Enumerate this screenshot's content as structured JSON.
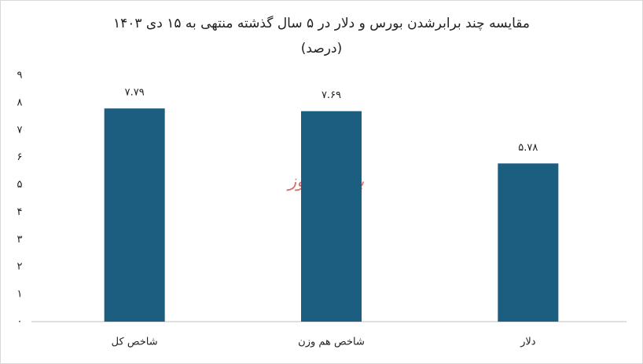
{
  "chart_data": {
    "type": "bar",
    "title": "مقایسه چند برابرشدن بورس و دلار در ۵ سال گذشته منتهی به ۱۵ دی ۱۴۰۳",
    "subtitle": "(درصد)",
    "watermark": "بورس نیوز",
    "categories": [
      "شاخص کل",
      "شاخص هم وزن",
      "دلار"
    ],
    "values": [
      7.79,
      7.69,
      5.78
    ],
    "value_labels": [
      "۷.۷۹",
      "۷.۶۹",
      "۵.۷۸"
    ],
    "color": "#1b5e80",
    "ylim": [
      0,
      9
    ],
    "yticks": [
      {
        "value": 0,
        "label": "۰"
      },
      {
        "value": 1,
        "label": "۱"
      },
      {
        "value": 2,
        "label": "۲"
      },
      {
        "value": 3,
        "label": "۳"
      },
      {
        "value": 4,
        "label": "۴"
      },
      {
        "value": 5,
        "label": "۵"
      },
      {
        "value": 6,
        "label": "۶"
      },
      {
        "value": 7,
        "label": "۷"
      },
      {
        "value": 8,
        "label": "۸"
      },
      {
        "value": 9,
        "label": "۹"
      }
    ],
    "grid": false
  }
}
